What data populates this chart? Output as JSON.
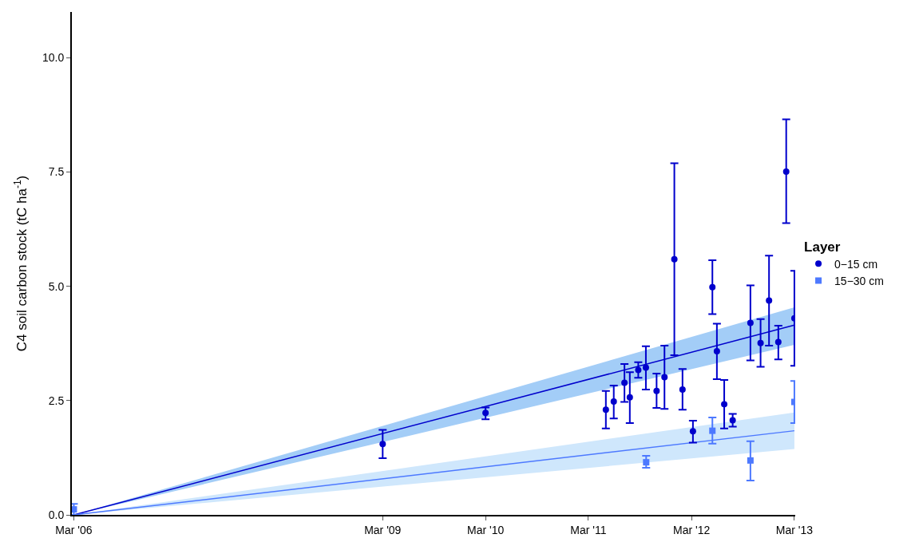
{
  "chart_data": {
    "type": "scatter",
    "ylabel": "C4 soil carbon stock (tC ha$^{-1}$)",
    "legend_title": "Layer",
    "legend": "right",
    "grid": false,
    "xlim": [
      "2006-02-22",
      "2013-03-04"
    ],
    "xticks": [
      {
        "value": "2006-03-01",
        "label": "Mar '06"
      },
      {
        "value": "2009-03-01",
        "label": "Mar '09"
      },
      {
        "value": "2010-03-01",
        "label": "Mar '10"
      },
      {
        "value": "2011-03-01",
        "label": "Mar '11"
      },
      {
        "value": "2012-03-01",
        "label": "Mar '12"
      },
      {
        "value": "2013-03-01",
        "label": "Mar '13"
      }
    ],
    "ylim": [
      0,
      11
    ],
    "yticks": [
      {
        "value": 0,
        "label": "0.0"
      },
      {
        "value": 2.5,
        "label": "2.5"
      },
      {
        "value": 5,
        "label": "5.0"
      },
      {
        "value": 7.5,
        "label": "7.5"
      },
      {
        "value": 10,
        "label": "10.0"
      }
    ],
    "series": [
      {
        "type": "line",
        "color": "#0000cc",
        "x": [
          "2006-03-01",
          "2013-03-01"
        ],
        "values": [
          0,
          4.15
        ],
        "lower": [
          0,
          3.72
        ],
        "upper": [
          0,
          4.54
        ]
      },
      {
        "type": "line",
        "color": "#4d79ff",
        "x": [
          "2006-03-01",
          "2013-03-01"
        ],
        "values": [
          0,
          1.84
        ],
        "lower": [
          0,
          1.44
        ],
        "upper": [
          0,
          2.24
        ]
      },
      {
        "name": "0−15 cm",
        "color": "#0000cc",
        "marker": "circle",
        "x": [
          "2009-03-01",
          "2010-03-01",
          "2011-05-02",
          "2011-05-30",
          "2011-07-07",
          "2011-07-26",
          "2011-08-25",
          "2011-09-21",
          "2011-10-29",
          "2011-11-26",
          "2011-12-31",
          "2012-01-29",
          "2012-03-06",
          "2012-05-14",
          "2012-05-30",
          "2012-06-25",
          "2012-07-25",
          "2012-09-26",
          "2012-11-01",
          "2012-12-01",
          "2013-01-03",
          "2013-01-31",
          "2013-03-01"
        ],
        "values": [
          1.55,
          2.23,
          2.3,
          2.48,
          2.89,
          2.57,
          3.17,
          3.22,
          2.71,
          3.01,
          5.59,
          2.74,
          1.83,
          4.98,
          3.58,
          2.42,
          2.07,
          4.2,
          3.76,
          4.69,
          3.78,
          7.51,
          4.3
        ],
        "errors": [
          [
            1.24,
            1.86
          ],
          [
            2.09,
            2.35
          ],
          [
            1.89,
            2.71
          ],
          [
            2.11,
            2.83
          ],
          [
            2.47,
            3.3
          ],
          [
            2.01,
            3.12
          ],
          [
            3.0,
            3.34
          ],
          [
            2.74,
            3.69
          ],
          [
            2.34,
            3.09
          ],
          [
            2.32,
            3.7
          ],
          [
            3.49,
            7.69
          ],
          [
            2.3,
            3.19
          ],
          [
            1.58,
            2.06
          ],
          [
            4.39,
            5.57
          ],
          [
            2.97,
            4.18
          ],
          [
            1.89,
            2.95
          ],
          [
            1.93,
            2.21
          ],
          [
            3.38,
            5.02
          ],
          [
            3.24,
            4.28
          ],
          [
            3.7,
            5.67
          ],
          [
            3.4,
            4.14
          ],
          [
            6.38,
            8.65
          ],
          [
            3.26,
            5.34
          ]
        ]
      },
      {
        "name": "15−30 cm",
        "color": "#4d79ff",
        "marker": "square",
        "x": [
          "2006-03-01",
          "2011-09-22",
          "2012-05-14",
          "2012-09-26",
          "2013-03-01"
        ],
        "values": [
          0.12,
          1.15,
          1.84,
          1.19,
          2.47
        ],
        "errors": [
          [
            0.0,
            0.24
          ],
          [
            1.03,
            1.29
          ],
          [
            1.56,
            2.13
          ],
          [
            0.75,
            1.61
          ],
          [
            2.01,
            2.93
          ]
        ]
      }
    ]
  }
}
